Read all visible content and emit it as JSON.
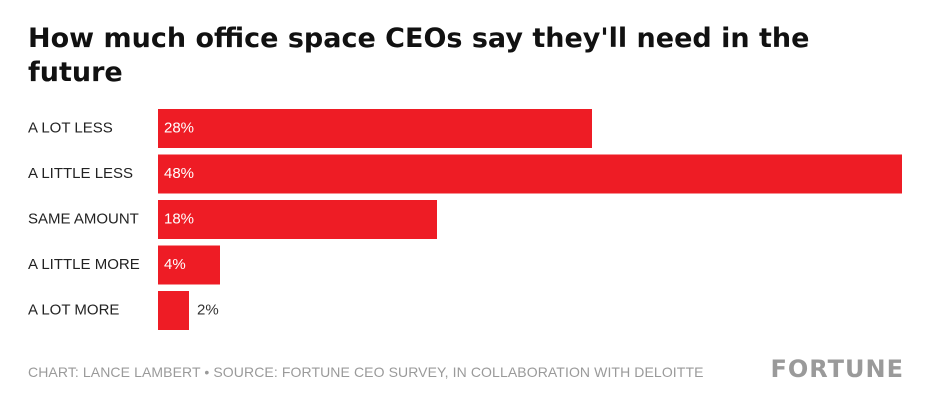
{
  "chart_data": {
    "type": "bar",
    "orientation": "horizontal",
    "title": "How much office space CEOs say they'll need in the future",
    "categories": [
      "A LOT LESS",
      "A LITTLE LESS",
      "SAME AMOUNT",
      "A LITTLE MORE",
      "A LOT MORE"
    ],
    "values": [
      28,
      48,
      18,
      4,
      2
    ],
    "value_labels": [
      "28%",
      "48%",
      "18%",
      "4%",
      "2%"
    ],
    "unit": "%",
    "xlim": [
      0,
      48
    ],
    "bar_color": "#ee1c25",
    "xlabel": "",
    "ylabel": ""
  },
  "footer": {
    "credit": "CHART: LANCE LAMBERT • SOURCE: FORTUNE CEO SURVEY, IN COLLABORATION WITH DELOITTE",
    "brand": "FORTUNE"
  },
  "colors": {
    "label_inside": "#ffffff",
    "label_outside": "#333333",
    "category_text": "#222222",
    "footer_text": "#9a9a9a"
  }
}
